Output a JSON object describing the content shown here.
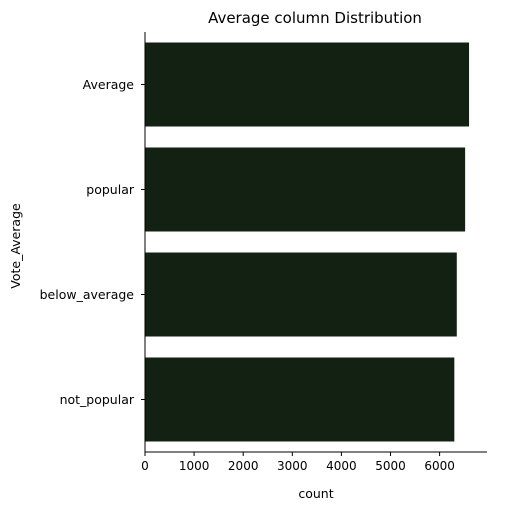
{
  "chart_data": {
    "type": "bar",
    "orientation": "horizontal",
    "title": "Average column Distribution",
    "xlabel": "count",
    "ylabel": "Vote_Average",
    "categories": [
      "Average",
      "popular",
      "below_average",
      "not_popular"
    ],
    "values": [
      6600,
      6520,
      6350,
      6300
    ],
    "xlim": [
      0,
      7000
    ],
    "xticks": [
      0,
      1000,
      2000,
      3000,
      4000,
      5000,
      6000
    ],
    "grid": false,
    "legend": "none",
    "bar_color": "#132113"
  }
}
